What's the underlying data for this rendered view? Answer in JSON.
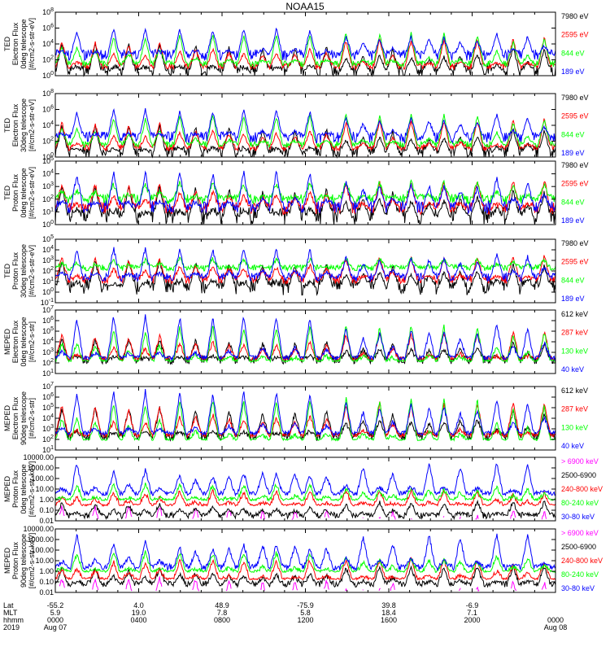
{
  "title": "NOAA15",
  "colors": {
    "black": "#000000",
    "red": "#ff0000",
    "green": "#00ff00",
    "blue": "#0000ff",
    "magenta": "#ff00ff"
  },
  "x_ticks": {
    "hhmm": [
      "0000",
      "0400",
      "0800",
      "1200",
      "1600",
      "2000",
      "0000"
    ],
    "lat": [
      "-55.2",
      "4.0",
      "48.9",
      "-75.9",
      "39.8",
      "-6.9",
      ""
    ],
    "mlt": [
      "5.9",
      "19.0",
      "7.8",
      "5.8",
      "18.4",
      "7.1",
      ""
    ],
    "dates": [
      "Aug 07",
      "Aug 08"
    ]
  },
  "row_labels": [
    "Lat",
    "MLT",
    "hhmm",
    "2019"
  ],
  "chart_data": [
    {
      "type": "line",
      "ylabel": [
        "TED",
        "Electron Flux",
        "0deg telescope",
        "[#/cm2-s-str-eV]"
      ],
      "y_ticks": [
        "10^0",
        "10^2",
        "10^4",
        "10^6",
        "10^8"
      ],
      "yrange_log": [
        0,
        8
      ],
      "series": [
        {
          "name": "7980 eV",
          "color": "black",
          "baseline": 0.6,
          "peak": 4.0,
          "noise": 0.8
        },
        {
          "name": "2595 eV",
          "color": "red",
          "baseline": 1.2,
          "peak": 4.8,
          "noise": 0.4
        },
        {
          "name": "844 eV",
          "color": "green",
          "baseline": 1.5,
          "peak": 5.5,
          "noise": 0.4
        },
        {
          "name": "189 eV",
          "color": "blue",
          "baseline": 2.6,
          "peak": 6.0,
          "noise": 0.7
        }
      ]
    },
    {
      "type": "line",
      "ylabel": [
        "TED",
        "Electron Flux",
        "30deg telescope",
        "[#/cm2-s-str-eV]"
      ],
      "y_ticks": [
        "10^0",
        "10^2",
        "10^4",
        "10^6",
        "10^8"
      ],
      "yrange_log": [
        0,
        8
      ],
      "series": [
        {
          "name": "7980 eV",
          "color": "black",
          "baseline": 0.6,
          "peak": 4.0,
          "noise": 0.8
        },
        {
          "name": "2595 eV",
          "color": "red",
          "baseline": 1.2,
          "peak": 4.8,
          "noise": 0.4
        },
        {
          "name": "844 eV",
          "color": "green",
          "baseline": 1.6,
          "peak": 5.5,
          "noise": 0.4
        },
        {
          "name": "189 eV",
          "color": "blue",
          "baseline": 2.5,
          "peak": 6.0,
          "noise": 0.7
        }
      ]
    },
    {
      "type": "line",
      "ylabel": [
        "TED",
        "Proton Flux",
        "0deg telescope",
        "[#/cm2-s-str-eV]"
      ],
      "y_ticks": [
        "10^0",
        "10^1",
        "10^2",
        "10^3",
        "10^4",
        "10^5"
      ],
      "yrange_log": [
        0,
        5
      ],
      "series": [
        {
          "name": "7980 eV",
          "color": "black",
          "baseline": 0.7,
          "peak": 3.0,
          "noise": 0.7
        },
        {
          "name": "2595 eV",
          "color": "red",
          "baseline": 1.3,
          "peak": 3.5,
          "noise": 0.5
        },
        {
          "name": "844 eV",
          "color": "green",
          "baseline": 2.0,
          "peak": 3.4,
          "noise": 0.4
        },
        {
          "name": "189 eV",
          "color": "blue",
          "baseline": 1.4,
          "peak": 4.2,
          "noise": 0.5
        }
      ]
    },
    {
      "type": "line",
      "ylabel": [
        "TED",
        "Proton Flux",
        "30deg telescope",
        "[#/cm2-s-str-eV]"
      ],
      "y_ticks": [
        "10^-1",
        "10^0",
        "10^1",
        "10^2",
        "10^3",
        "10^4",
        "10^5"
      ],
      "yrange_log": [
        -1,
        5
      ],
      "series": [
        {
          "name": "7980 eV",
          "color": "black",
          "baseline": 0.5,
          "peak": 3.0,
          "noise": 0.8
        },
        {
          "name": "2595 eV",
          "color": "red",
          "baseline": 1.2,
          "peak": 3.5,
          "noise": 0.4
        },
        {
          "name": "844 eV",
          "color": "green",
          "baseline": 2.3,
          "peak": 3.2,
          "noise": 0.3
        },
        {
          "name": "189 eV",
          "color": "blue",
          "baseline": 1.4,
          "peak": 4.2,
          "noise": 0.4
        }
      ]
    },
    {
      "type": "line",
      "ylabel": [
        "MEPED",
        "Electron Flux",
        "0deg telescope",
        "[#/cm2-s-str]"
      ],
      "y_ticks": [
        "10^1",
        "10^2",
        "10^3",
        "10^4",
        "10^5",
        "10^6",
        "10^7"
      ],
      "yrange_log": [
        1,
        7
      ],
      "series": [
        {
          "name": "612 keV",
          "color": "black",
          "baseline": 2.3,
          "peak": 4.2,
          "noise": 0.4
        },
        {
          "name": "287 keV",
          "color": "red",
          "baseline": 2.4,
          "peak": 5.0,
          "noise": 0.2
        },
        {
          "name": "130 keV",
          "color": "green",
          "baseline": 2.2,
          "peak": 5.6,
          "noise": 0.1
        },
        {
          "name": "40 keV",
          "color": "blue",
          "baseline": 2.5,
          "peak": 6.5,
          "noise": 0.2
        }
      ]
    },
    {
      "type": "line",
      "ylabel": [
        "MEPED",
        "Electron Flux",
        "90deg telescope",
        "[#/cm2-s-str]"
      ],
      "y_ticks": [
        "10^1",
        "10^2",
        "10^3",
        "10^4",
        "10^5",
        "10^6",
        "10^7"
      ],
      "yrange_log": [
        1,
        7
      ],
      "series": [
        {
          "name": "612 keV",
          "color": "black",
          "baseline": 2.3,
          "peak": 5.0,
          "noise": 0.4
        },
        {
          "name": "287 keV",
          "color": "red",
          "baseline": 2.4,
          "peak": 5.6,
          "noise": 0.2
        },
        {
          "name": "130 keV",
          "color": "green",
          "baseline": 2.0,
          "peak": 6.0,
          "noise": 0.1
        },
        {
          "name": "40 keV",
          "color": "blue",
          "baseline": 2.6,
          "peak": 6.6,
          "noise": 0.2
        }
      ]
    },
    {
      "type": "line",
      "ylabel": [
        "MEPED",
        "Proton Flux",
        "0deg telescope",
        "[#/cm2-s-str-keV]"
      ],
      "y_ticks": [
        "0.01",
        "0.10",
        "1.00",
        "10.00",
        "100.00",
        "1000.00",
        "10000.00"
      ],
      "yrange_log": [
        -2,
        4
      ],
      "series": [
        {
          "name": "> 6900 keV",
          "color": "magenta",
          "baseline": -3.0,
          "peak": -0.6,
          "noise": 0.3
        },
        {
          "name": "2500-6900",
          "color": "black",
          "baseline": -1.5,
          "peak": -0.2,
          "noise": 0.3
        },
        {
          "name": "240-800 keV",
          "color": "red",
          "baseline": -0.5,
          "peak": 0.9,
          "noise": 0.1
        },
        {
          "name": "80-240 keV",
          "color": "green",
          "baseline": 0.0,
          "peak": 1.5,
          "noise": 0.1
        },
        {
          "name": "30-80 keV",
          "color": "blue",
          "baseline": 0.6,
          "peak": 3.5,
          "noise": 0.2
        }
      ]
    },
    {
      "type": "line",
      "ylabel": [
        "MEPED",
        "Proton Flux",
        "90deg telescope",
        "[#/cm2-s-str-keV]"
      ],
      "y_ticks": [
        "0.01",
        "0.10",
        "1.00",
        "10.00",
        "100.00",
        "1000.00",
        "10000.00"
      ],
      "yrange_log": [
        -2,
        4
      ],
      "series": [
        {
          "name": "> 6900 keV",
          "color": "magenta",
          "baseline": -3.0,
          "peak": -0.6,
          "noise": 0.3
        },
        {
          "name": "2500-6900",
          "color": "black",
          "baseline": -1.2,
          "peak": 0.5,
          "noise": 0.3
        },
        {
          "name": "240-800 keV",
          "color": "red",
          "baseline": -0.7,
          "peak": 1.2,
          "noise": 0.1
        },
        {
          "name": "80-240 keV",
          "color": "green",
          "baseline": 0.0,
          "peak": 1.8,
          "noise": 0.1
        },
        {
          "name": "30-80 keV",
          "color": "blue",
          "baseline": 0.4,
          "peak": 3.6,
          "noise": 0.3
        }
      ]
    }
  ]
}
